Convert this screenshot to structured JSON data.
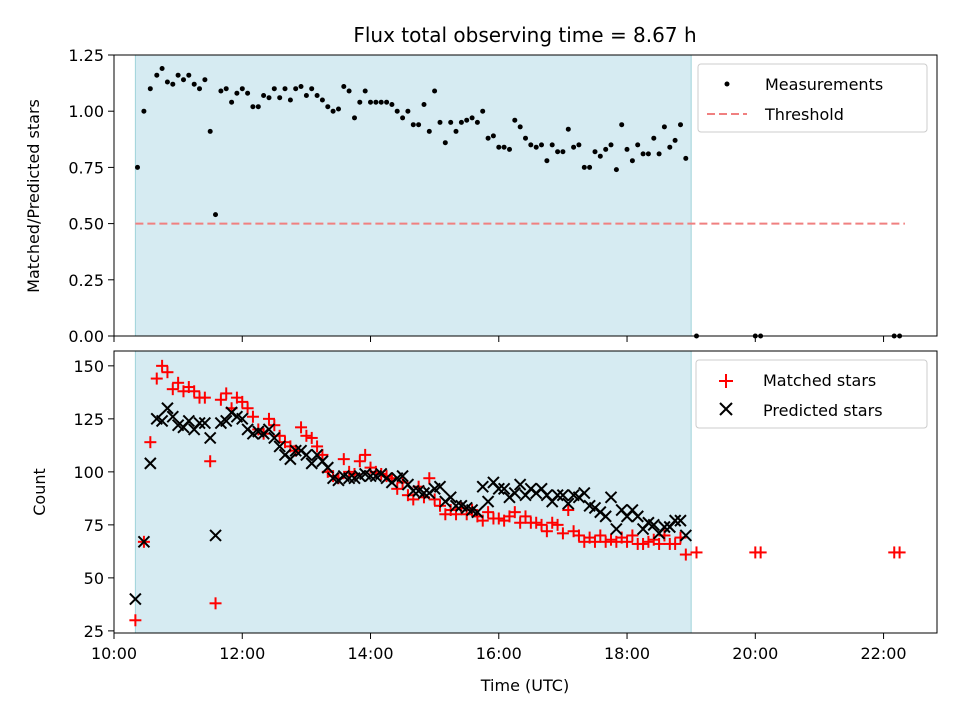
{
  "chart_data": [
    {
      "type": "scatter",
      "title": "Flux total observing time = 8.67 h",
      "xlabel": "",
      "ylabel": "Matched/Predicted stars",
      "xlim": [
        "10:00",
        "22:50"
      ],
      "ylim": [
        0,
        1.25
      ],
      "yticks": [
        "0.00",
        "0.25",
        "0.50",
        "0.75",
        "1.00",
        "1.25"
      ],
      "observing_window": [
        "10:20",
        "19:00"
      ],
      "series": [
        {
          "name": "Measurements",
          "marker": "dot",
          "color": "#000000",
          "x": [
            "10:22",
            "10:28",
            "10:34",
            "10:40",
            "10:45",
            "10:50",
            "10:55",
            "11:00",
            "11:05",
            "11:10",
            "11:15",
            "11:20",
            "11:25",
            "11:30",
            "11:35",
            "11:40",
            "11:45",
            "11:50",
            "11:55",
            "12:00",
            "12:05",
            "12:10",
            "12:15",
            "12:20",
            "12:25",
            "12:30",
            "12:35",
            "12:40",
            "12:45",
            "12:50",
            "12:55",
            "13:00",
            "13:05",
            "13:10",
            "13:15",
            "13:20",
            "13:25",
            "13:30",
            "13:35",
            "13:40",
            "13:45",
            "13:50",
            "13:55",
            "14:00",
            "14:05",
            "14:10",
            "14:15",
            "14:20",
            "14:25",
            "14:30",
            "14:35",
            "14:40",
            "14:45",
            "14:50",
            "14:55",
            "15:00",
            "15:05",
            "15:10",
            "15:15",
            "15:20",
            "15:25",
            "15:30",
            "15:35",
            "15:40",
            "15:45",
            "15:50",
            "15:55",
            "16:00",
            "16:05",
            "16:10",
            "16:15",
            "16:20",
            "16:25",
            "16:30",
            "16:35",
            "16:40",
            "16:45",
            "16:50",
            "16:55",
            "17:00",
            "17:05",
            "17:10",
            "17:15",
            "17:20",
            "17:25",
            "17:30",
            "17:35",
            "17:40",
            "17:45",
            "17:50",
            "17:55",
            "18:00",
            "18:05",
            "18:10",
            "18:15",
            "18:20",
            "18:25",
            "18:30",
            "18:35",
            "18:40",
            "18:45",
            "18:50",
            "18:55",
            "19:05",
            "20:00",
            "20:05",
            "22:10",
            "22:15"
          ],
          "y": [
            0.75,
            1.0,
            1.1,
            1.16,
            1.19,
            1.13,
            1.12,
            1.16,
            1.14,
            1.16,
            1.12,
            1.1,
            1.14,
            0.91,
            0.54,
            1.09,
            1.1,
            1.04,
            1.08,
            1.1,
            1.08,
            1.02,
            1.02,
            1.07,
            1.06,
            1.1,
            1.06,
            1.1,
            1.05,
            1.1,
            1.11,
            1.07,
            1.1,
            1.07,
            1.05,
            1.02,
            1.0,
            1.01,
            1.11,
            1.09,
            0.97,
            1.04,
            1.09,
            1.04,
            1.04,
            1.04,
            1.04,
            1.03,
            1.0,
            0.97,
            1.0,
            0.94,
            0.94,
            1.03,
            0.91,
            1.09,
            0.95,
            0.86,
            0.95,
            0.91,
            0.95,
            0.96,
            0.97,
            0.95,
            1.0,
            0.88,
            0.89,
            0.84,
            0.84,
            0.83,
            0.96,
            0.93,
            0.88,
            0.85,
            0.84,
            0.85,
            0.78,
            0.85,
            0.82,
            0.82,
            0.92,
            0.84,
            0.85,
            0.75,
            0.75,
            0.82,
            0.8,
            0.83,
            0.85,
            0.74,
            0.94,
            0.83,
            0.78,
            0.85,
            0.81,
            0.81,
            0.88,
            0.81,
            0.93,
            0.84,
            0.87,
            0.94,
            0.79,
            0.0,
            0.0,
            0.0,
            0.0,
            0.0
          ]
        },
        {
          "name": "Threshold",
          "marker": "dashed-line",
          "color": "#f08080",
          "x": [
            "10:20",
            "22:20"
          ],
          "y": [
            0.5,
            0.5
          ]
        }
      ],
      "legend": "top-right"
    },
    {
      "type": "scatter",
      "title": "",
      "xlabel": "Time (UTC)",
      "ylabel": "Count",
      "xlim": [
        "10:00",
        "22:50"
      ],
      "ylim": [
        24,
        157
      ],
      "yticks": [
        "25",
        "50",
        "75",
        "100",
        "125",
        "150"
      ],
      "xticks": [
        "10:00",
        "12:00",
        "14:00",
        "16:00",
        "18:00",
        "20:00",
        "22:00"
      ],
      "observing_window": [
        "10:20",
        "19:00"
      ],
      "series": [
        {
          "name": "Matched stars",
          "marker": "plus",
          "color": "#ff0000",
          "x": [
            "10:20",
            "10:28",
            "10:34",
            "10:40",
            "10:45",
            "10:50",
            "10:55",
            "11:00",
            "11:05",
            "11:10",
            "11:15",
            "11:20",
            "11:25",
            "11:30",
            "11:35",
            "11:40",
            "11:45",
            "11:50",
            "11:55",
            "12:00",
            "12:05",
            "12:10",
            "12:15",
            "12:20",
            "12:25",
            "12:30",
            "12:35",
            "12:40",
            "12:45",
            "12:50",
            "12:55",
            "13:00",
            "13:05",
            "13:10",
            "13:15",
            "13:20",
            "13:25",
            "13:30",
            "13:35",
            "13:40",
            "13:45",
            "13:50",
            "13:55",
            "14:00",
            "14:05",
            "14:10",
            "14:15",
            "14:20",
            "14:25",
            "14:30",
            "14:35",
            "14:40",
            "14:45",
            "14:50",
            "14:55",
            "15:00",
            "15:05",
            "15:10",
            "15:15",
            "15:20",
            "15:25",
            "15:30",
            "15:35",
            "15:40",
            "15:45",
            "15:50",
            "15:55",
            "16:00",
            "16:05",
            "16:10",
            "16:15",
            "16:20",
            "16:25",
            "16:30",
            "16:35",
            "16:40",
            "16:45",
            "16:50",
            "16:55",
            "17:00",
            "17:05",
            "17:10",
            "17:15",
            "17:20",
            "17:25",
            "17:30",
            "17:35",
            "17:40",
            "17:45",
            "17:50",
            "17:55",
            "18:00",
            "18:05",
            "18:10",
            "18:15",
            "18:20",
            "18:25",
            "18:30",
            "18:35",
            "18:40",
            "18:45",
            "18:50",
            "18:55",
            "19:05",
            "20:00",
            "20:05",
            "22:10",
            "22:15"
          ],
          "y": [
            30,
            67,
            114,
            144,
            150,
            147,
            139,
            142,
            138,
            140,
            138,
            135,
            135,
            105,
            38,
            134,
            137,
            130,
            135,
            133,
            130,
            126,
            120,
            118,
            125,
            122,
            117,
            114,
            112,
            110,
            121,
            117,
            116,
            112,
            108,
            100,
            98,
            97,
            106,
            100,
            99,
            105,
            108,
            102,
            100,
            99,
            98,
            97,
            92,
            95,
            89,
            87,
            93,
            88,
            97,
            87,
            84,
            80,
            82,
            80,
            83,
            80,
            82,
            79,
            77,
            81,
            78,
            78,
            77,
            79,
            81,
            76,
            79,
            76,
            76,
            75,
            72,
            76,
            75,
            71,
            82,
            72,
            70,
            67,
            69,
            67,
            70,
            67,
            68,
            67,
            69,
            67,
            70,
            66,
            66,
            67,
            68,
            66,
            70,
            66,
            66,
            69,
            61,
            62,
            62,
            62,
            62,
            62
          ]
        },
        {
          "name": "Predicted stars",
          "marker": "x",
          "color": "#000000",
          "x": [
            "10:20",
            "10:28",
            "10:34",
            "10:40",
            "10:45",
            "10:50",
            "10:55",
            "11:00",
            "11:05",
            "11:10",
            "11:15",
            "11:20",
            "11:25",
            "11:30",
            "11:35",
            "11:40",
            "11:45",
            "11:50",
            "11:55",
            "12:00",
            "12:05",
            "12:10",
            "12:15",
            "12:20",
            "12:25",
            "12:30",
            "12:35",
            "12:40",
            "12:45",
            "12:50",
            "12:55",
            "13:00",
            "13:05",
            "13:10",
            "13:15",
            "13:20",
            "13:25",
            "13:30",
            "13:35",
            "13:40",
            "13:45",
            "13:50",
            "13:55",
            "14:00",
            "14:05",
            "14:10",
            "14:15",
            "14:20",
            "14:25",
            "14:30",
            "14:35",
            "14:40",
            "14:45",
            "14:50",
            "14:55",
            "15:00",
            "15:05",
            "15:10",
            "15:15",
            "15:20",
            "15:25",
            "15:30",
            "15:35",
            "15:40",
            "15:45",
            "15:50",
            "15:55",
            "16:00",
            "16:05",
            "16:10",
            "16:15",
            "16:20",
            "16:25",
            "16:30",
            "16:35",
            "16:40",
            "16:45",
            "16:50",
            "16:55",
            "17:00",
            "17:05",
            "17:10",
            "17:15",
            "17:20",
            "17:25",
            "17:30",
            "17:35",
            "17:40",
            "17:45",
            "17:50",
            "17:55",
            "18:00",
            "18:05",
            "18:10",
            "18:15",
            "18:20",
            "18:25",
            "18:30",
            "18:35",
            "18:40",
            "18:45",
            "18:50",
            "18:55"
          ],
          "y": [
            40,
            67,
            104,
            125,
            124,
            130,
            126,
            122,
            121,
            124,
            120,
            123,
            123,
            116,
            70,
            123,
            124,
            128,
            126,
            125,
            120,
            118,
            119,
            118,
            120,
            116,
            112,
            108,
            106,
            110,
            110,
            108,
            104,
            108,
            105,
            102,
            97,
            96,
            98,
            97,
            97,
            98,
            99,
            98,
            98,
            99,
            97,
            95,
            97,
            98,
            94,
            91,
            91,
            90,
            90,
            92,
            93,
            86,
            88,
            84,
            84,
            83,
            82,
            81,
            93,
            86,
            95,
            92,
            92,
            88,
            90,
            94,
            89,
            92,
            90,
            92,
            89,
            86,
            89,
            89,
            85,
            89,
            88,
            90,
            84,
            83,
            81,
            79,
            88,
            73,
            82,
            79,
            82,
            79,
            73,
            76,
            75,
            71,
            74,
            74,
            77,
            77,
            70
          ]
        }
      ],
      "legend": "top-right"
    }
  ]
}
